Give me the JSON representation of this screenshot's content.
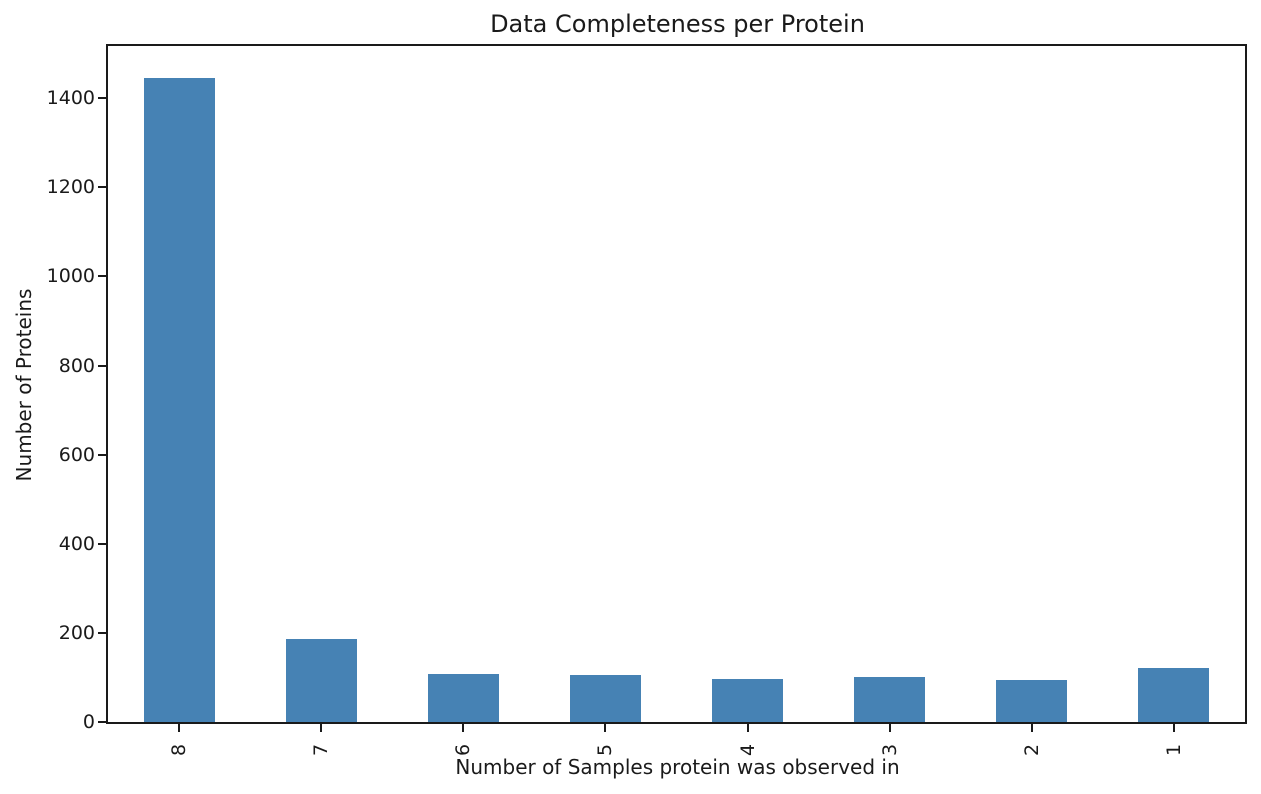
{
  "chart_data": {
    "type": "bar",
    "title": "Data Completeness per Protein",
    "xlabel": "Number of Samples protein was observed in",
    "ylabel": "Number of Proteins",
    "categories": [
      "8",
      "7",
      "6",
      "5",
      "4",
      "3",
      "2",
      "1"
    ],
    "values": [
      1445,
      186,
      107,
      105,
      96,
      100,
      94,
      121
    ],
    "ylim": [
      0,
      1517
    ],
    "yticks": [
      0,
      200,
      400,
      600,
      800,
      1000,
      1200,
      1400
    ],
    "bar_color": "#4682b4",
    "axis_color": "#1a1a1a",
    "text_color": "#1a1a1a",
    "grid": false,
    "legend": null,
    "xtick_rotation": 90
  }
}
